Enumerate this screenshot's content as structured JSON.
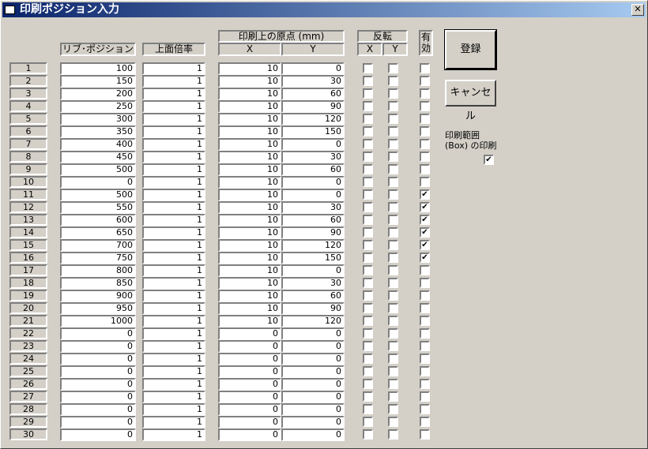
{
  "window": {
    "title": "印刷ポジション入力",
    "close": "✕"
  },
  "headers": {
    "ribbon": "リブ･ポジション",
    "scale": "上面倍率",
    "origin": "印刷上の原点 (mm)",
    "origin_x": "X",
    "origin_y": "Y",
    "flip": "反転",
    "flip_x": "X",
    "flip_y": "Y",
    "valid": "有効"
  },
  "buttons": {
    "register": "登録",
    "cancel": "キャンセル"
  },
  "print_box": {
    "label_line1": "印刷範囲",
    "label_line2": "(Box) の印刷",
    "checked": true
  },
  "rows": [
    {
      "n": "1",
      "ribbon": "100",
      "scale": "1",
      "x": "10",
      "y": "0",
      "valid": false
    },
    {
      "n": "2",
      "ribbon": "150",
      "scale": "1",
      "x": "10",
      "y": "30",
      "valid": false
    },
    {
      "n": "3",
      "ribbon": "200",
      "scale": "1",
      "x": "10",
      "y": "60",
      "valid": false
    },
    {
      "n": "4",
      "ribbon": "250",
      "scale": "1",
      "x": "10",
      "y": "90",
      "valid": false
    },
    {
      "n": "5",
      "ribbon": "300",
      "scale": "1",
      "x": "10",
      "y": "120",
      "valid": false
    },
    {
      "n": "6",
      "ribbon": "350",
      "scale": "1",
      "x": "10",
      "y": "150",
      "valid": false
    },
    {
      "n": "7",
      "ribbon": "400",
      "scale": "1",
      "x": "10",
      "y": "0",
      "valid": false
    },
    {
      "n": "8",
      "ribbon": "450",
      "scale": "1",
      "x": "10",
      "y": "30",
      "valid": false
    },
    {
      "n": "9",
      "ribbon": "500",
      "scale": "1",
      "x": "10",
      "y": "60",
      "valid": false
    },
    {
      "n": "10",
      "ribbon": "0",
      "scale": "1",
      "x": "10",
      "y": "0",
      "valid": false
    },
    {
      "n": "11",
      "ribbon": "500",
      "scale": "1",
      "x": "10",
      "y": "0",
      "valid": true
    },
    {
      "n": "12",
      "ribbon": "550",
      "scale": "1",
      "x": "10",
      "y": "30",
      "valid": true
    },
    {
      "n": "13",
      "ribbon": "600",
      "scale": "1",
      "x": "10",
      "y": "60",
      "valid": true
    },
    {
      "n": "14",
      "ribbon": "650",
      "scale": "1",
      "x": "10",
      "y": "90",
      "valid": true
    },
    {
      "n": "15",
      "ribbon": "700",
      "scale": "1",
      "x": "10",
      "y": "120",
      "valid": true
    },
    {
      "n": "16",
      "ribbon": "750",
      "scale": "1",
      "x": "10",
      "y": "150",
      "valid": true
    },
    {
      "n": "17",
      "ribbon": "800",
      "scale": "1",
      "x": "10",
      "y": "0",
      "valid": false
    },
    {
      "n": "18",
      "ribbon": "850",
      "scale": "1",
      "x": "10",
      "y": "30",
      "valid": false
    },
    {
      "n": "19",
      "ribbon": "900",
      "scale": "1",
      "x": "10",
      "y": "60",
      "valid": false
    },
    {
      "n": "20",
      "ribbon": "950",
      "scale": "1",
      "x": "10",
      "y": "90",
      "valid": false
    },
    {
      "n": "21",
      "ribbon": "1000",
      "scale": "1",
      "x": "10",
      "y": "120",
      "valid": false
    },
    {
      "n": "22",
      "ribbon": "0",
      "scale": "1",
      "x": "0",
      "y": "0",
      "valid": false
    },
    {
      "n": "23",
      "ribbon": "0",
      "scale": "1",
      "x": "0",
      "y": "0",
      "valid": false
    },
    {
      "n": "24",
      "ribbon": "0",
      "scale": "1",
      "x": "0",
      "y": "0",
      "valid": false
    },
    {
      "n": "25",
      "ribbon": "0",
      "scale": "1",
      "x": "0",
      "y": "0",
      "valid": false
    },
    {
      "n": "26",
      "ribbon": "0",
      "scale": "1",
      "x": "0",
      "y": "0",
      "valid": false
    },
    {
      "n": "27",
      "ribbon": "0",
      "scale": "1",
      "x": "0",
      "y": "0",
      "valid": false
    },
    {
      "n": "28",
      "ribbon": "0",
      "scale": "1",
      "x": "0",
      "y": "0",
      "valid": false
    },
    {
      "n": "29",
      "ribbon": "0",
      "scale": "1",
      "x": "0",
      "y": "0",
      "valid": false
    },
    {
      "n": "30",
      "ribbon": "0",
      "scale": "1",
      "x": "0",
      "y": "0",
      "valid": false
    }
  ]
}
